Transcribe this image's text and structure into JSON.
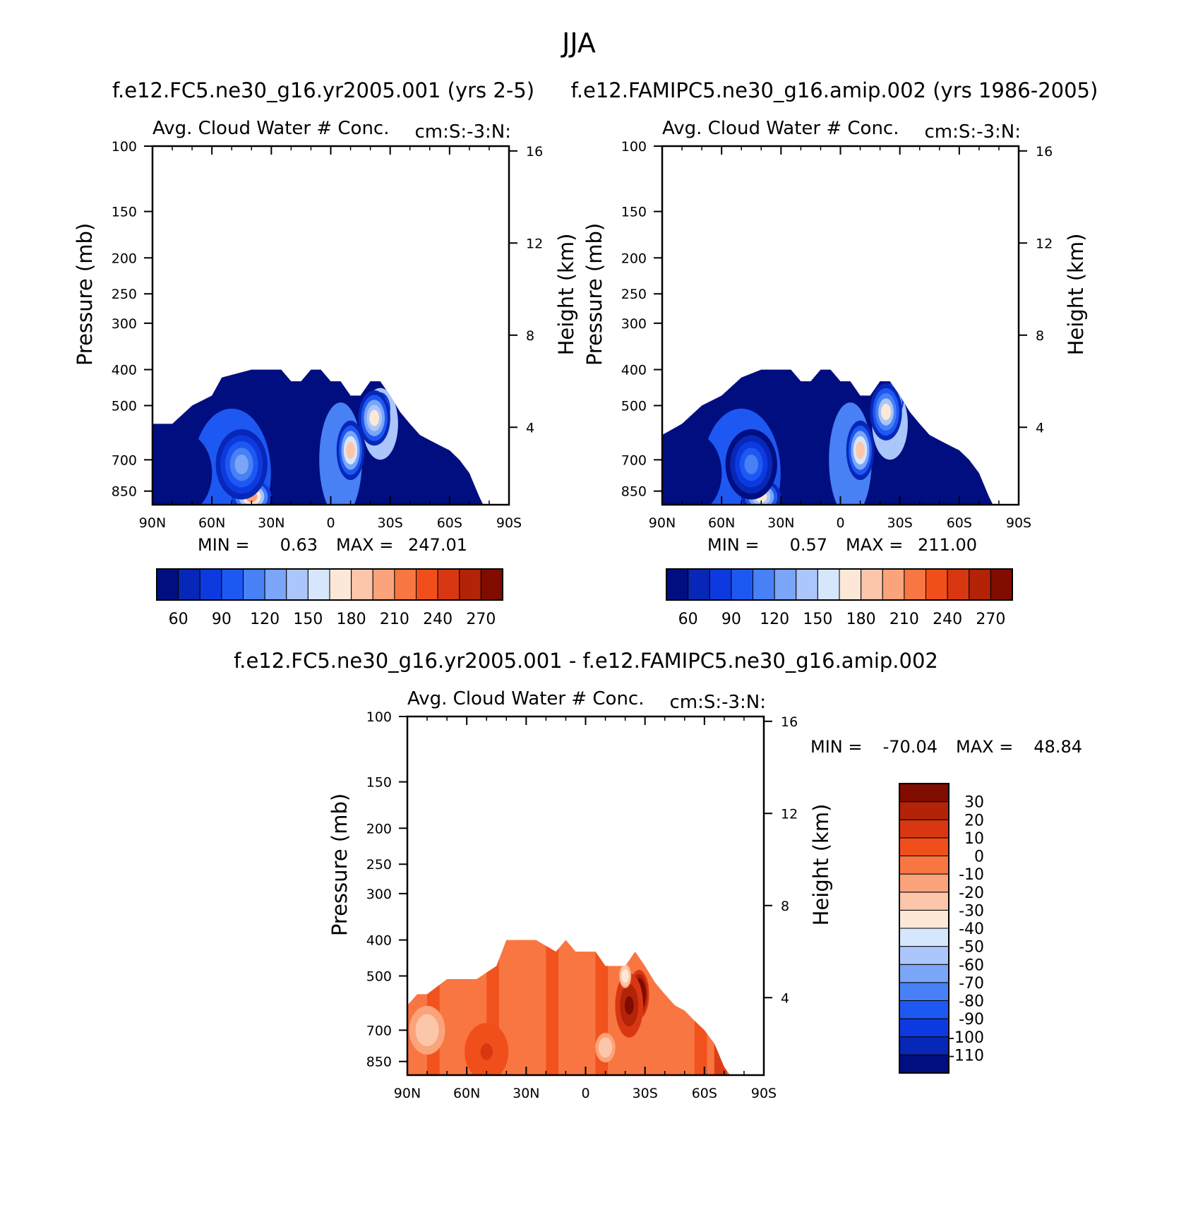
{
  "figure": {
    "title": "JJA",
    "cmap_abs": [
      "#000e80",
      "#0727b8",
      "#0d3ae0",
      "#1e58f2",
      "#4880f5",
      "#7ba5f7",
      "#aac6fa",
      "#d6e7fd",
      "#fde8d8",
      "#fcc6aa",
      "#fba37a",
      "#f87642",
      "#f04f1b",
      "#d83712",
      "#b32307",
      "#800c00"
    ],
    "cmap_diff": [
      "#000e80",
      "#0727b8",
      "#0d3ae0",
      "#1e58f2",
      "#4880f5",
      "#7ba5f7",
      "#aac6fa",
      "#d6e7fd",
      "#fde8d8",
      "#fcc6aa",
      "#fba37a",
      "#f87642",
      "#f04f1b",
      "#d83712",
      "#b32307",
      "#800c00"
    ]
  },
  "chart_data": [
    {
      "type": "heatmap",
      "case": "f.e12.FC5.ne30_g16.yr2005.001 (yrs 2-5)",
      "title": "Avg. Cloud Water # Conc.",
      "units": "cm:S:-3:N:",
      "xlabel": "",
      "ylabel": "Pressure (mb)",
      "ylabel_right": "Height (km)",
      "x_ticks": [
        "90N",
        "60N",
        "30N",
        "0",
        "30S",
        "60S",
        "90S"
      ],
      "y_ticks": [
        "100",
        "150",
        "200",
        "250",
        "300",
        "400",
        "500",
        "700",
        "850"
      ],
      "y_ticks_right": [
        "16",
        "12",
        "8",
        "4"
      ],
      "xlim": [
        90,
        -90
      ],
      "ylim": [
        100,
        925
      ],
      "y_scale": "log",
      "stats": {
        "min_label": "MIN =",
        "min": "0.63",
        "max_label": "MAX =",
        "max": "247.01"
      },
      "colorbar": {
        "orientation": "horizontal",
        "labels": [
          "60",
          "90",
          "120",
          "150",
          "180",
          "210",
          "240",
          "270"
        ]
      },
      "cloud_top_mb": [
        [
          90,
          560
        ],
        [
          80,
          560
        ],
        [
          70,
          500
        ],
        [
          60,
          470
        ],
        [
          55,
          420
        ],
        [
          40,
          400
        ],
        [
          25,
          400
        ],
        [
          20,
          430
        ],
        [
          15,
          430
        ],
        [
          10,
          400
        ],
        [
          5,
          400
        ],
        [
          0,
          430
        ],
        [
          -5,
          430
        ],
        [
          -10,
          470
        ],
        [
          -15,
          470
        ],
        [
          -20,
          430
        ],
        [
          -25,
          430
        ],
        [
          -30,
          470
        ],
        [
          -35,
          520
        ],
        [
          -40,
          560
        ],
        [
          -45,
          600
        ],
        [
          -50,
          620
        ],
        [
          -55,
          640
        ],
        [
          -60,
          660
        ],
        [
          -65,
          700
        ],
        [
          -70,
          760
        ],
        [
          -75,
          880
        ],
        [
          -77,
          925
        ]
      ],
      "features": [
        {
          "lat": 40,
          "p": 880,
          "value": 180,
          "rx": 9,
          "rp": 80
        },
        {
          "lat": 45,
          "p": 720,
          "value": 110,
          "rx": 12,
          "rp": 160
        },
        {
          "lat": -10,
          "p": 660,
          "value": 170,
          "rx": 6,
          "rp": 120
        },
        {
          "lat": -25,
          "p": 510,
          "value": 230,
          "rx": 4,
          "rp": 45
        },
        {
          "lat": -22,
          "p": 540,
          "value": 160,
          "rx": 7,
          "rp": 90
        },
        {
          "lat": 75,
          "p": 760,
          "value": 40,
          "rx": 14,
          "rp": 200
        }
      ]
    },
    {
      "type": "heatmap",
      "case": "f.e12.FAMIPC5.ne30_g16.amip.002 (yrs 1986-2005)",
      "title": "Avg. Cloud Water # Conc.",
      "units": "cm:S:-3:N:",
      "xlabel": "",
      "ylabel": "Pressure (mb)",
      "ylabel_right": "Height (km)",
      "x_ticks": [
        "90N",
        "60N",
        "30N",
        "0",
        "30S",
        "60S",
        "90S"
      ],
      "y_ticks": [
        "100",
        "150",
        "200",
        "250",
        "300",
        "400",
        "500",
        "700",
        "850"
      ],
      "y_ticks_right": [
        "16",
        "12",
        "8",
        "4"
      ],
      "xlim": [
        90,
        -90
      ],
      "ylim": [
        100,
        925
      ],
      "y_scale": "log",
      "stats": {
        "min_label": "MIN =",
        "min": "0.57",
        "max_label": "MAX =",
        "max": "211.00"
      },
      "colorbar": {
        "orientation": "horizontal",
        "labels": [
          "60",
          "90",
          "120",
          "150",
          "180",
          "210",
          "240",
          "270"
        ]
      },
      "cloud_top_mb": [
        [
          90,
          600
        ],
        [
          80,
          560
        ],
        [
          70,
          500
        ],
        [
          60,
          470
        ],
        [
          50,
          420
        ],
        [
          40,
          400
        ],
        [
          25,
          400
        ],
        [
          20,
          430
        ],
        [
          15,
          430
        ],
        [
          10,
          400
        ],
        [
          5,
          400
        ],
        [
          0,
          430
        ],
        [
          -5,
          430
        ],
        [
          -10,
          470
        ],
        [
          -15,
          470
        ],
        [
          -20,
          430
        ],
        [
          -25,
          430
        ],
        [
          -30,
          470
        ],
        [
          -35,
          520
        ],
        [
          -40,
          560
        ],
        [
          -45,
          600
        ],
        [
          -50,
          620
        ],
        [
          -55,
          640
        ],
        [
          -60,
          660
        ],
        [
          -65,
          700
        ],
        [
          -70,
          760
        ],
        [
          -75,
          880
        ],
        [
          -77,
          925
        ]
      ],
      "features": [
        {
          "lat": 40,
          "p": 880,
          "value": 160,
          "rx": 9,
          "rp": 80
        },
        {
          "lat": 45,
          "p": 720,
          "value": 100,
          "rx": 12,
          "rp": 160
        },
        {
          "lat": -10,
          "p": 660,
          "value": 165,
          "rx": 6,
          "rp": 120
        },
        {
          "lat": -27,
          "p": 480,
          "value": 190,
          "rx": 4,
          "rp": 45
        },
        {
          "lat": -23,
          "p": 520,
          "value": 150,
          "rx": 7,
          "rp": 90
        },
        {
          "lat": 75,
          "p": 760,
          "value": 40,
          "rx": 14,
          "rp": 200
        }
      ]
    },
    {
      "type": "heatmap",
      "case": "f.e12.FC5.ne30_g16.yr2005.001 - f.e12.FAMIPC5.ne30_g16.amip.002",
      "title": "Avg. Cloud Water # Conc.",
      "units": "cm:S:-3:N:",
      "xlabel": "",
      "ylabel": "Pressure (mb)",
      "ylabel_right": "Height (km)",
      "x_ticks": [
        "90N",
        "60N",
        "30N",
        "0",
        "30S",
        "60S",
        "90S"
      ],
      "y_ticks": [
        "100",
        "150",
        "200",
        "250",
        "300",
        "400",
        "500",
        "700",
        "850"
      ],
      "y_ticks_right": [
        "16",
        "12",
        "8",
        "4"
      ],
      "xlim": [
        90,
        -90
      ],
      "ylim": [
        100,
        925
      ],
      "y_scale": "log",
      "stats": {
        "min_label": "MIN =",
        "min": "-70.04",
        "max_label": "MAX =",
        "max": "48.84"
      },
      "colorbar": {
        "orientation": "vertical",
        "labels": [
          "30",
          "20",
          "10",
          "0",
          "-10",
          "-20",
          "-30",
          "-40",
          "-50",
          "-60",
          "-70",
          "-80",
          "-90",
          "-100",
          "-110"
        ]
      },
      "cloud_top_mb": [
        [
          90,
          600
        ],
        [
          85,
          560
        ],
        [
          80,
          560
        ],
        [
          70,
          510
        ],
        [
          55,
          510
        ],
        [
          45,
          470
        ],
        [
          40,
          400
        ],
        [
          30,
          400
        ],
        [
          25,
          400
        ],
        [
          15,
          430
        ],
        [
          10,
          400
        ],
        [
          5,
          430
        ],
        [
          -5,
          430
        ],
        [
          -10,
          470
        ],
        [
          -20,
          470
        ],
        [
          -25,
          430
        ],
        [
          -30,
          470
        ],
        [
          -35,
          520
        ],
        [
          -40,
          560
        ],
        [
          -45,
          600
        ],
        [
          -50,
          620
        ],
        [
          -55,
          660
        ],
        [
          -60,
          700
        ],
        [
          -65,
          760
        ],
        [
          -70,
          880
        ],
        [
          -73,
          925
        ]
      ],
      "features": [
        {
          "lat": -27,
          "p": 560,
          "value": 45,
          "rx": 4,
          "rp": 80
        },
        {
          "lat": -22,
          "p": 600,
          "value": 30,
          "rx": 6,
          "rp": 120
        },
        {
          "lat": -20,
          "p": 500,
          "value": -40,
          "rx": 2,
          "rp": 30
        },
        {
          "lat": 80,
          "p": 700,
          "value": -30,
          "rx": 8,
          "rp": 100
        },
        {
          "lat": -10,
          "p": 780,
          "value": -30,
          "rx": 4,
          "rp": 60
        },
        {
          "lat": 50,
          "p": 800,
          "value": 10,
          "rx": 10,
          "rp": 140
        }
      ]
    }
  ]
}
